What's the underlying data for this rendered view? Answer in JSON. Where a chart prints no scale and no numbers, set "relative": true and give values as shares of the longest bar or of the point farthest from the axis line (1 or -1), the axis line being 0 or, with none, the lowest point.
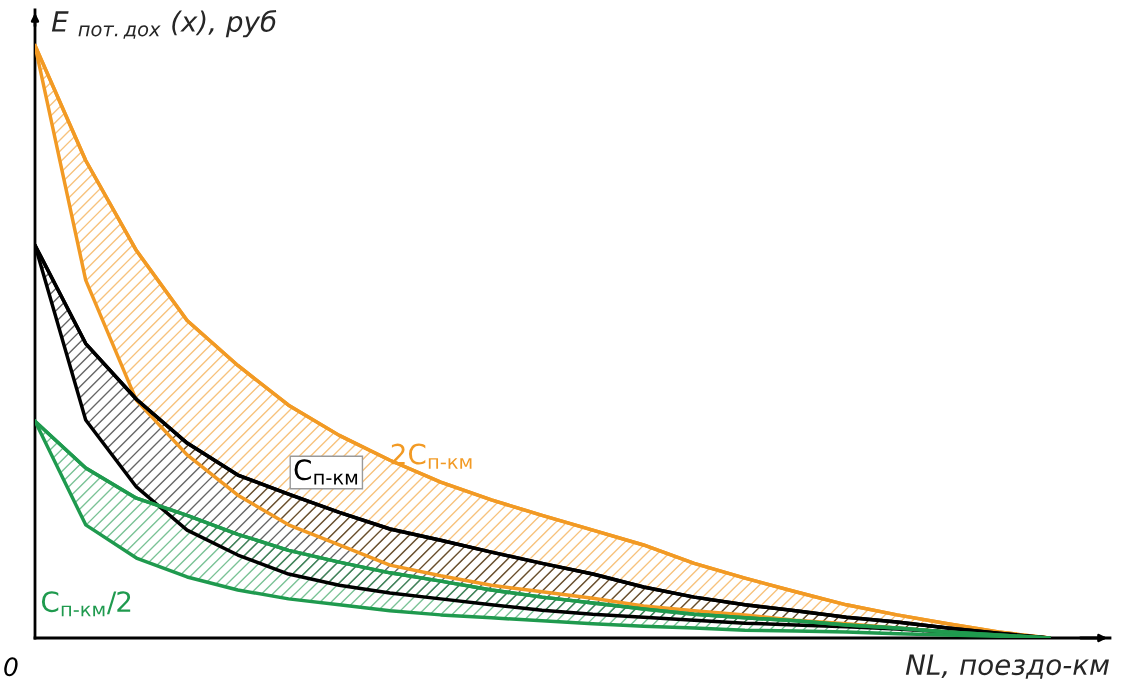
{
  "chart_data": {
    "type": "line",
    "relative": true,
    "ylabel": "E $_{пот.дох}$ (x), руб",
    "xlabel": "NL, поездо-км",
    "categories": [
      null,
      null,
      null,
      null,
      null,
      null,
      null,
      null,
      null,
      null,
      null,
      null,
      null,
      null,
      null,
      null,
      null,
      null,
      null,
      null,
      null
    ],
    "series": [
      {
        "color": "#f29a24",
        "values": [
          1,
          0.806,
          0.654,
          0.536,
          0.46,
          0.393,
          0.342,
          0.3,
          0.263,
          0.233,
          0.207,
          0.182,
          0.157,
          0.126,
          0.101,
          0.078,
          0.056,
          0.039,
          0.024,
          0.01,
          0
        ],
        "upper": [
          1,
          0.806,
          0.654,
          0.536,
          0.46,
          0.393,
          0.342,
          0.3,
          0.263,
          0.233,
          0.207,
          0.182,
          0.157,
          0.126,
          0.101,
          0.078,
          0.056,
          0.039,
          0.024,
          0.01,
          0
        ],
        "lower": [
          1,
          0.604,
          0.401,
          0.309,
          0.241,
          0.191,
          0.157,
          0.123,
          0.105,
          0.089,
          0.078,
          0.067,
          0.054,
          0.046,
          0.039,
          0.03,
          0.024,
          0.017,
          0.01,
          0.005,
          0
        ]
      },
      {
        "color": "#000000",
        "values": [
          0.663,
          0.497,
          0.403,
          0.329,
          0.275,
          0.243,
          0.212,
          0.184,
          0.165,
          0.145,
          0.126,
          0.108,
          0.086,
          0.069,
          0.056,
          0.046,
          0.035,
          0.027,
          0.017,
          0.008,
          0
        ],
        "upper": [
          0.663,
          0.497,
          0.403,
          0.329,
          0.275,
          0.243,
          0.212,
          0.184,
          0.165,
          0.145,
          0.126,
          0.108,
          0.086,
          0.069,
          0.056,
          0.046,
          0.035,
          0.027,
          0.017,
          0.008,
          0
        ],
        "lower": [
          0.663,
          0.368,
          0.255,
          0.182,
          0.14,
          0.108,
          0.089,
          0.076,
          0.066,
          0.056,
          0.047,
          0.04,
          0.035,
          0.03,
          0.025,
          0.022,
          0.019,
          0.015,
          0.01,
          0.005,
          0
        ]
      },
      {
        "color": "#1f9a4e",
        "values": [
          0.366,
          0.287,
          0.236,
          0.207,
          0.175,
          0.148,
          0.128,
          0.11,
          0.096,
          0.081,
          0.069,
          0.059,
          0.049,
          0.04,
          0.034,
          0.029,
          0.022,
          0.017,
          0.01,
          0.005,
          0
        ],
        "upper": [
          0.366,
          0.287,
          0.236,
          0.207,
          0.175,
          0.148,
          0.128,
          0.11,
          0.096,
          0.081,
          0.069,
          0.059,
          0.049,
          0.04,
          0.034,
          0.029,
          0.022,
          0.017,
          0.01,
          0.005,
          0
        ],
        "lower": [
          0.366,
          0.191,
          0.135,
          0.103,
          0.081,
          0.066,
          0.056,
          0.046,
          0.039,
          0.034,
          0.029,
          0.024,
          0.02,
          0.017,
          0.013,
          0.012,
          0.01,
          0.007,
          0.005,
          0.003,
          0
        ]
      }
    ],
    "annotations": [
      "2C$_{п-км}$",
      "C$_{п-км}$",
      "C$_{п-км}$/2",
      "0"
    ]
  }
}
